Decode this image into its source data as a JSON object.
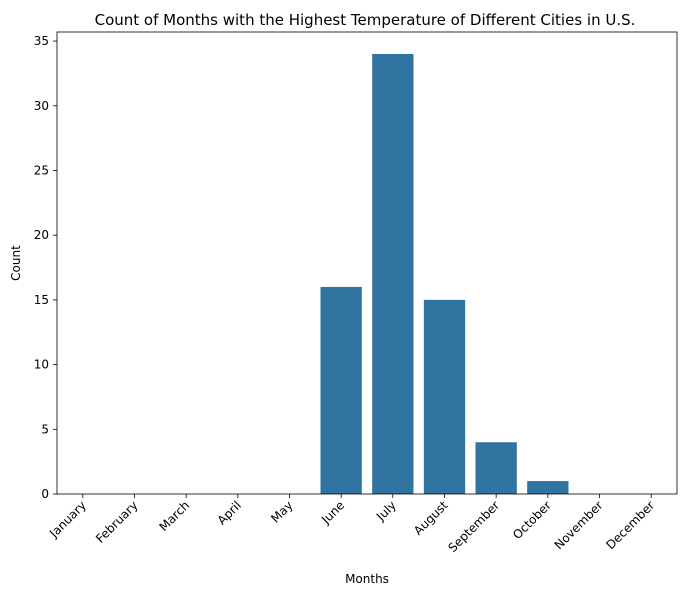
{
  "chart_data": {
    "type": "bar",
    "title": "Count of Months with the Highest Temperature of Different Cities in U.S.",
    "xlabel": "Months",
    "ylabel": "Count",
    "categories": [
      "January",
      "February",
      "March",
      "April",
      "May",
      "June",
      "July",
      "August",
      "September",
      "October",
      "November",
      "December"
    ],
    "values": [
      0,
      0,
      0,
      0,
      0,
      16,
      34,
      15,
      4,
      1,
      0,
      0
    ],
    "ylim": [
      0,
      35.7
    ],
    "yticks": [
      0,
      5,
      10,
      15,
      20,
      25,
      30,
      35
    ],
    "bar_color": "#3274a1",
    "grid": false,
    "legend": "none"
  }
}
